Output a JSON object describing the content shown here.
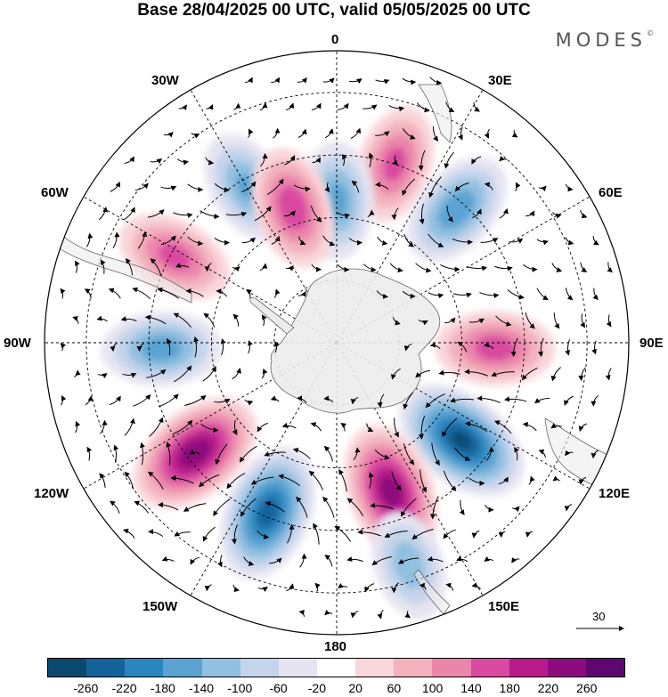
{
  "title": "Base 28/04/2025 00 UTC, valid 05/05/2025 00 UTC",
  "logo": "MODES",
  "logo_mark": "©",
  "meridian_labels": {
    "n0": "0",
    "w30": "30W",
    "e30": "30E",
    "w60": "60W",
    "e60": "60E",
    "w90": "90W",
    "e90": "90E",
    "w120": "120W",
    "e120": "120E",
    "w150": "150W",
    "e150": "150E",
    "s180": "180"
  },
  "vector_reference": "30",
  "colorbar": {
    "colors": [
      "#0b4a6e",
      "#14639a",
      "#2a86bf",
      "#5aa3d2",
      "#91c0e0",
      "#c3d4eb",
      "#e6e4f1",
      "#ffffff",
      "#f9d6d9",
      "#f3b2bd",
      "#eb86ab",
      "#d94aa0",
      "#b81a8b",
      "#8c0b7d",
      "#5e0770"
    ],
    "ticks": [
      "-260",
      "-220",
      "-180",
      "-140",
      "-100",
      "-60",
      "-20",
      "20",
      "60",
      "100",
      "140",
      "180",
      "220",
      "260"
    ]
  },
  "anomaly_centers": [
    {
      "lon": -30,
      "lat": -47,
      "value": -140
    },
    {
      "lon": 18,
      "lat": -45,
      "value": 150
    },
    {
      "lon": 42,
      "lat": -47,
      "value": -170
    },
    {
      "lon": 0,
      "lat": -56,
      "value": -150
    },
    {
      "lon": -18,
      "lat": -56,
      "value": 170
    },
    {
      "lon": -62,
      "lat": -46,
      "value": 150
    },
    {
      "lon": -92,
      "lat": -48,
      "value": -160
    },
    {
      "lon": 92,
      "lat": -52,
      "value": 160
    },
    {
      "lon": 128,
      "lat": -52,
      "value": -260
    },
    {
      "lon": 160,
      "lat": -52,
      "value": 240
    },
    {
      "lon": -158,
      "lat": -46,
      "value": -240
    },
    {
      "lon": -128,
      "lat": -47,
      "value": 250
    },
    {
      "lon": 162,
      "lat": -34,
      "value": -120
    }
  ]
}
